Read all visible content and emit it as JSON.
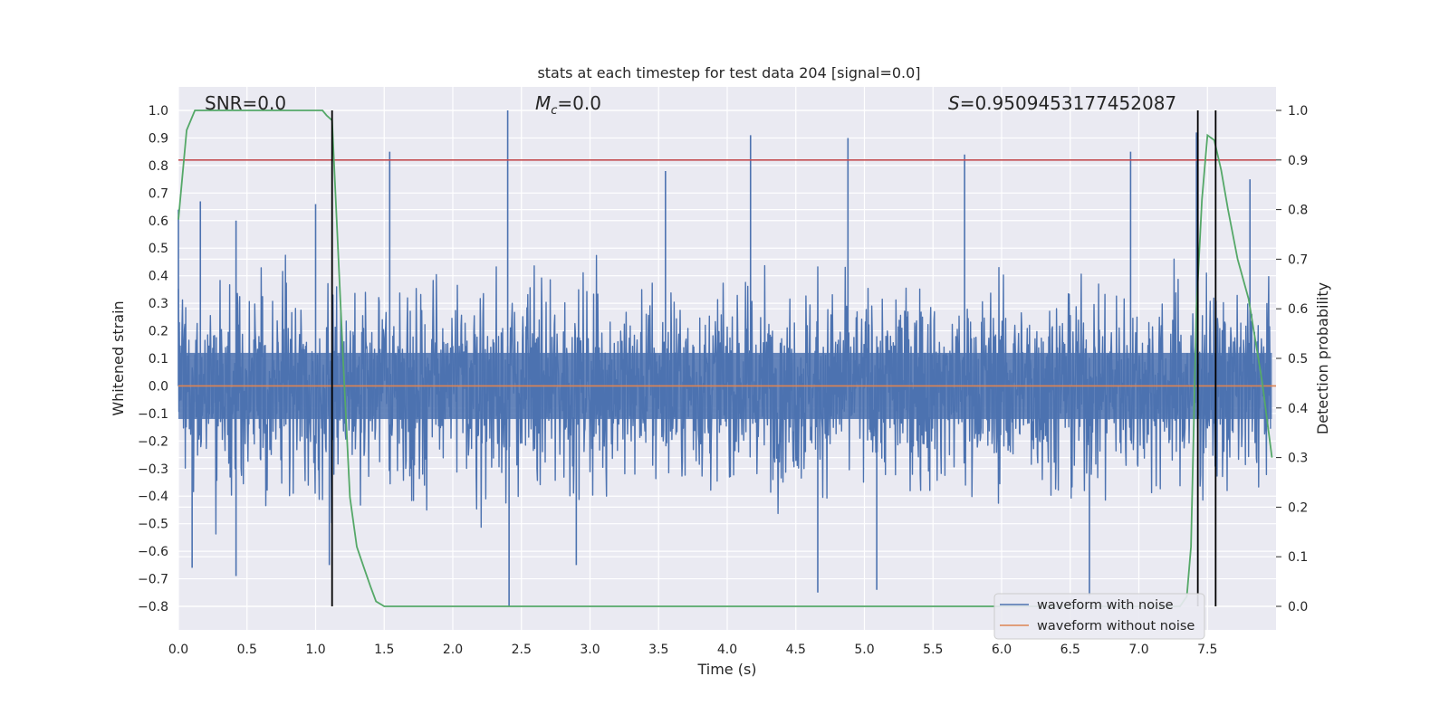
{
  "chart_data": {
    "type": "line",
    "title": "stats at each timestep for test data 204 [signal=0.0]",
    "xlabel": "Time (s)",
    "ylabel": "Whitened strain",
    "y2label": "Detection probability",
    "xlim": [
      0.0,
      8.0
    ],
    "ylim": [
      -0.8,
      1.0
    ],
    "y2lim": [
      0.0,
      1.0
    ],
    "x_ticks": [
      "0.0",
      "0.5",
      "1.0",
      "1.5",
      "2.0",
      "2.5",
      "3.0",
      "3.5",
      "4.0",
      "4.5",
      "5.0",
      "5.5",
      "6.0",
      "6.5",
      "7.0",
      "7.5"
    ],
    "y_ticks": [
      "−0.8",
      "−0.7",
      "−0.6",
      "−0.5",
      "−0.4",
      "−0.3",
      "−0.2",
      "−0.1",
      "0.0",
      "0.1",
      "0.2",
      "0.3",
      "0.4",
      "0.5",
      "0.6",
      "0.7",
      "0.8",
      "0.9",
      "1.0"
    ],
    "y2_ticks": [
      "0.0",
      "0.1",
      "0.2",
      "0.3",
      "0.4",
      "0.5",
      "0.6",
      "0.7",
      "0.8",
      "0.9",
      "1.0"
    ],
    "grid": true,
    "annotations": {
      "snr": "SNR=0.0",
      "mc_symbol": "M",
      "mc_sub": "c",
      "mc_value": "=0.0",
      "s_symbol": "S",
      "s_value": "=0.9509453177452087"
    },
    "legend": {
      "placement": "lower-right",
      "entries": [
        "waveform with noise",
        "waveform without noise"
      ]
    },
    "colors": {
      "noise": "#4c72b0",
      "clean": "#dd8452",
      "probability": "#55a868",
      "threshold": "#c44e52",
      "markers": "#000000",
      "axes_bg": "#eaeaf2"
    },
    "series": [
      {
        "name": "waveform with noise",
        "axis": "left",
        "style": "dense noise",
        "noise_std": 0.17,
        "spikes": [
          {
            "x": 0.0,
            "y": 0.64
          },
          {
            "x": 0.16,
            "y": 0.67
          },
          {
            "x": 0.42,
            "y": 0.6
          },
          {
            "x": 1.0,
            "y": 0.66
          },
          {
            "x": 1.54,
            "y": 0.85
          },
          {
            "x": 2.4,
            "y": 1.0
          },
          {
            "x": 2.41,
            "y": -0.8
          },
          {
            "x": 3.55,
            "y": 0.78
          },
          {
            "x": 4.17,
            "y": 0.91
          },
          {
            "x": 4.88,
            "y": 0.9
          },
          {
            "x": 5.73,
            "y": 0.84
          },
          {
            "x": 6.94,
            "y": 0.85
          },
          {
            "x": 7.42,
            "y": 0.92
          },
          {
            "x": 7.81,
            "y": 0.75
          },
          {
            "x": 0.1,
            "y": -0.66
          },
          {
            "x": 0.42,
            "y": -0.69
          },
          {
            "x": 1.1,
            "y": -0.65
          },
          {
            "x": 2.9,
            "y": -0.65
          },
          {
            "x": 4.66,
            "y": -0.75
          },
          {
            "x": 5.09,
            "y": -0.74
          },
          {
            "x": 6.64,
            "y": -0.76
          }
        ]
      },
      {
        "name": "waveform without noise",
        "axis": "left",
        "x": [
          0.0,
          8.0
        ],
        "y": [
          0.0,
          0.0
        ]
      },
      {
        "name": "detection probability",
        "axis": "right",
        "x": [
          0.0,
          0.06,
          0.12,
          0.2,
          0.4,
          0.7,
          1.0,
          1.05,
          1.08,
          1.12,
          1.2,
          1.25,
          1.3,
          1.35,
          1.4,
          1.44,
          1.5,
          2.0,
          4.0,
          6.0,
          7.0,
          7.3,
          7.35,
          7.38,
          7.42,
          7.46,
          7.5,
          7.55,
          7.6,
          7.65,
          7.72,
          7.8,
          7.9,
          7.97
        ],
        "y": [
          0.78,
          0.96,
          1.0,
          1.0,
          1.0,
          1.0,
          1.0,
          1.0,
          0.99,
          0.98,
          0.5,
          0.22,
          0.12,
          0.08,
          0.04,
          0.01,
          0.0,
          0.0,
          0.0,
          0.0,
          0.0,
          0.0,
          0.02,
          0.12,
          0.6,
          0.82,
          0.95,
          0.94,
          0.88,
          0.8,
          0.7,
          0.62,
          0.45,
          0.3
        ]
      }
    ],
    "threshold_y2": 0.9,
    "vertical_markers_x": [
      1.12,
      7.43,
      7.56
    ],
    "vertical_markers_y_range": [
      -0.8,
      1.0
    ]
  }
}
